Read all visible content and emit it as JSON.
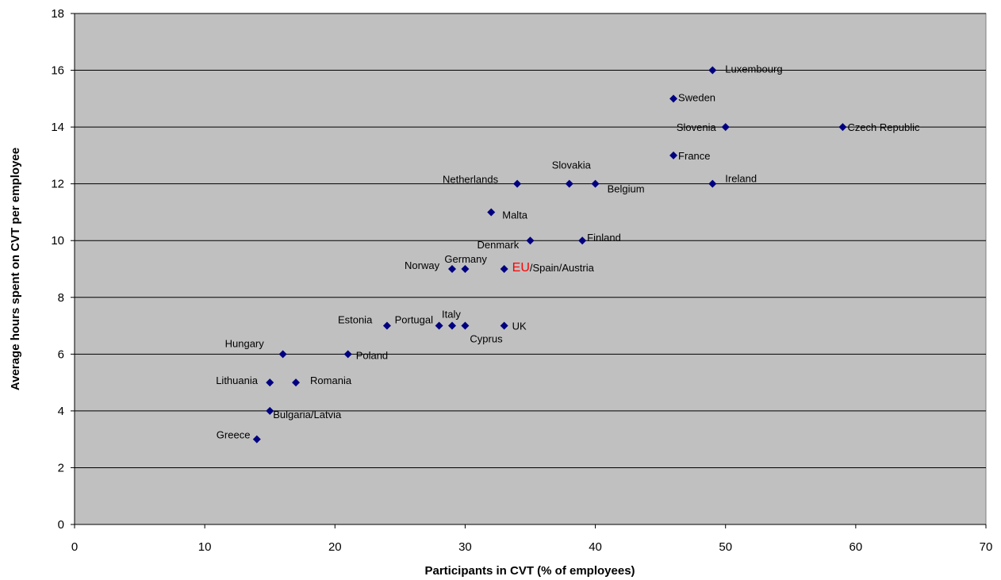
{
  "chart_data": {
    "type": "scatter",
    "title": "",
    "xlabel": "Participants in CVT (% of employees)",
    "ylabel": "Average hours spent on CVT per employee",
    "xlim": [
      0,
      70
    ],
    "ylim": [
      0,
      18
    ],
    "xticks": [
      0,
      10,
      20,
      30,
      40,
      50,
      60,
      70
    ],
    "yticks": [
      0,
      2,
      4,
      6,
      8,
      10,
      12,
      14,
      16,
      18
    ],
    "grid": "horizontal",
    "plot_background": "#c0c0c0",
    "marker_color": "#000080",
    "highlight_color": "#ff0000",
    "points": [
      {
        "label": "Luxembourg",
        "x": 49,
        "y": 16
      },
      {
        "label": "Sweden",
        "x": 46,
        "y": 15
      },
      {
        "label": "Slovenia",
        "x": 50,
        "y": 14
      },
      {
        "label": "Czech Republic",
        "x": 59,
        "y": 14
      },
      {
        "label": "France",
        "x": 46,
        "y": 13
      },
      {
        "label": "Netherlands",
        "x": 34,
        "y": 12
      },
      {
        "label": "Slovakia",
        "x": 38,
        "y": 12
      },
      {
        "label": "Belgium",
        "x": 40,
        "y": 12
      },
      {
        "label": "Ireland",
        "x": 49,
        "y": 12
      },
      {
        "label": "Malta",
        "x": 32,
        "y": 11
      },
      {
        "label": "Denmark",
        "x": 35,
        "y": 10
      },
      {
        "label": "Finland",
        "x": 39,
        "y": 10
      },
      {
        "label": "Norway",
        "x": 29,
        "y": 9
      },
      {
        "label": "Germany",
        "x": 30,
        "y": 9
      },
      {
        "label": "EU/Spain/Austria",
        "x": 33,
        "y": 9,
        "highlight_prefix": "EU"
      },
      {
        "label": "Estonia",
        "x": 24,
        "y": 7
      },
      {
        "label": "Portugal",
        "x": 28,
        "y": 7
      },
      {
        "label": "Italy",
        "x": 29,
        "y": 7
      },
      {
        "label": "Cyprus",
        "x": 30,
        "y": 7
      },
      {
        "label": "UK",
        "x": 33,
        "y": 7
      },
      {
        "label": "Hungary",
        "x": 16,
        "y": 6
      },
      {
        "label": "Poland",
        "x": 21,
        "y": 6
      },
      {
        "label": "Lithuania",
        "x": 15,
        "y": 5
      },
      {
        "label": "Romania",
        "x": 17,
        "y": 5
      },
      {
        "label": "Bulgaria/Latvia",
        "x": 15,
        "y": 4
      },
      {
        "label": "Greece",
        "x": 14,
        "y": 3
      }
    ]
  }
}
